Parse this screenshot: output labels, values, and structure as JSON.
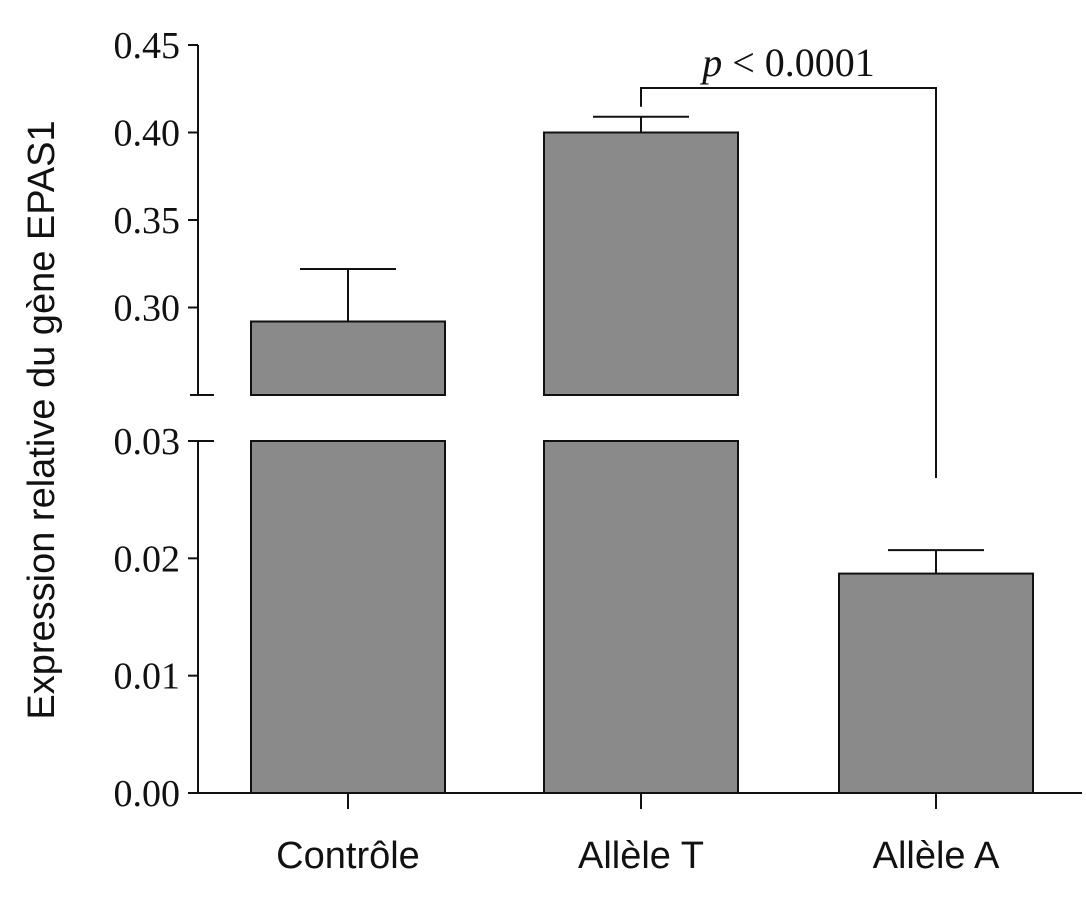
{
  "chart_data": {
    "type": "bar",
    "ylabel": "Expression relative du gène EPAS1",
    "categories": [
      "Contrôle",
      "Allèle T",
      "Allèle A"
    ],
    "values": [
      0.292,
      0.4,
      0.0187
    ],
    "error_upper": [
      0.322,
      0.409,
      0.0207
    ],
    "bar_color": "#8a8a8a",
    "y_axis_broken": true,
    "y_segments": [
      {
        "range": [
          0.0,
          0.03
        ],
        "ticks": [
          "0.00",
          "0.01",
          "0.02",
          "0.03"
        ],
        "tick_values": [
          0.0,
          0.01,
          0.02,
          0.03
        ]
      },
      {
        "range": [
          0.25,
          0.45
        ],
        "ticks": [
          "0.30",
          "0.35",
          "0.40",
          "0.45"
        ],
        "tick_values": [
          0.3,
          0.35,
          0.4,
          0.45
        ]
      }
    ],
    "annotation": {
      "from": "Allèle T",
      "to": "Allèle A",
      "p_symbol": "p",
      "text": "< 0.0001"
    },
    "grid": false,
    "legend": "none"
  }
}
